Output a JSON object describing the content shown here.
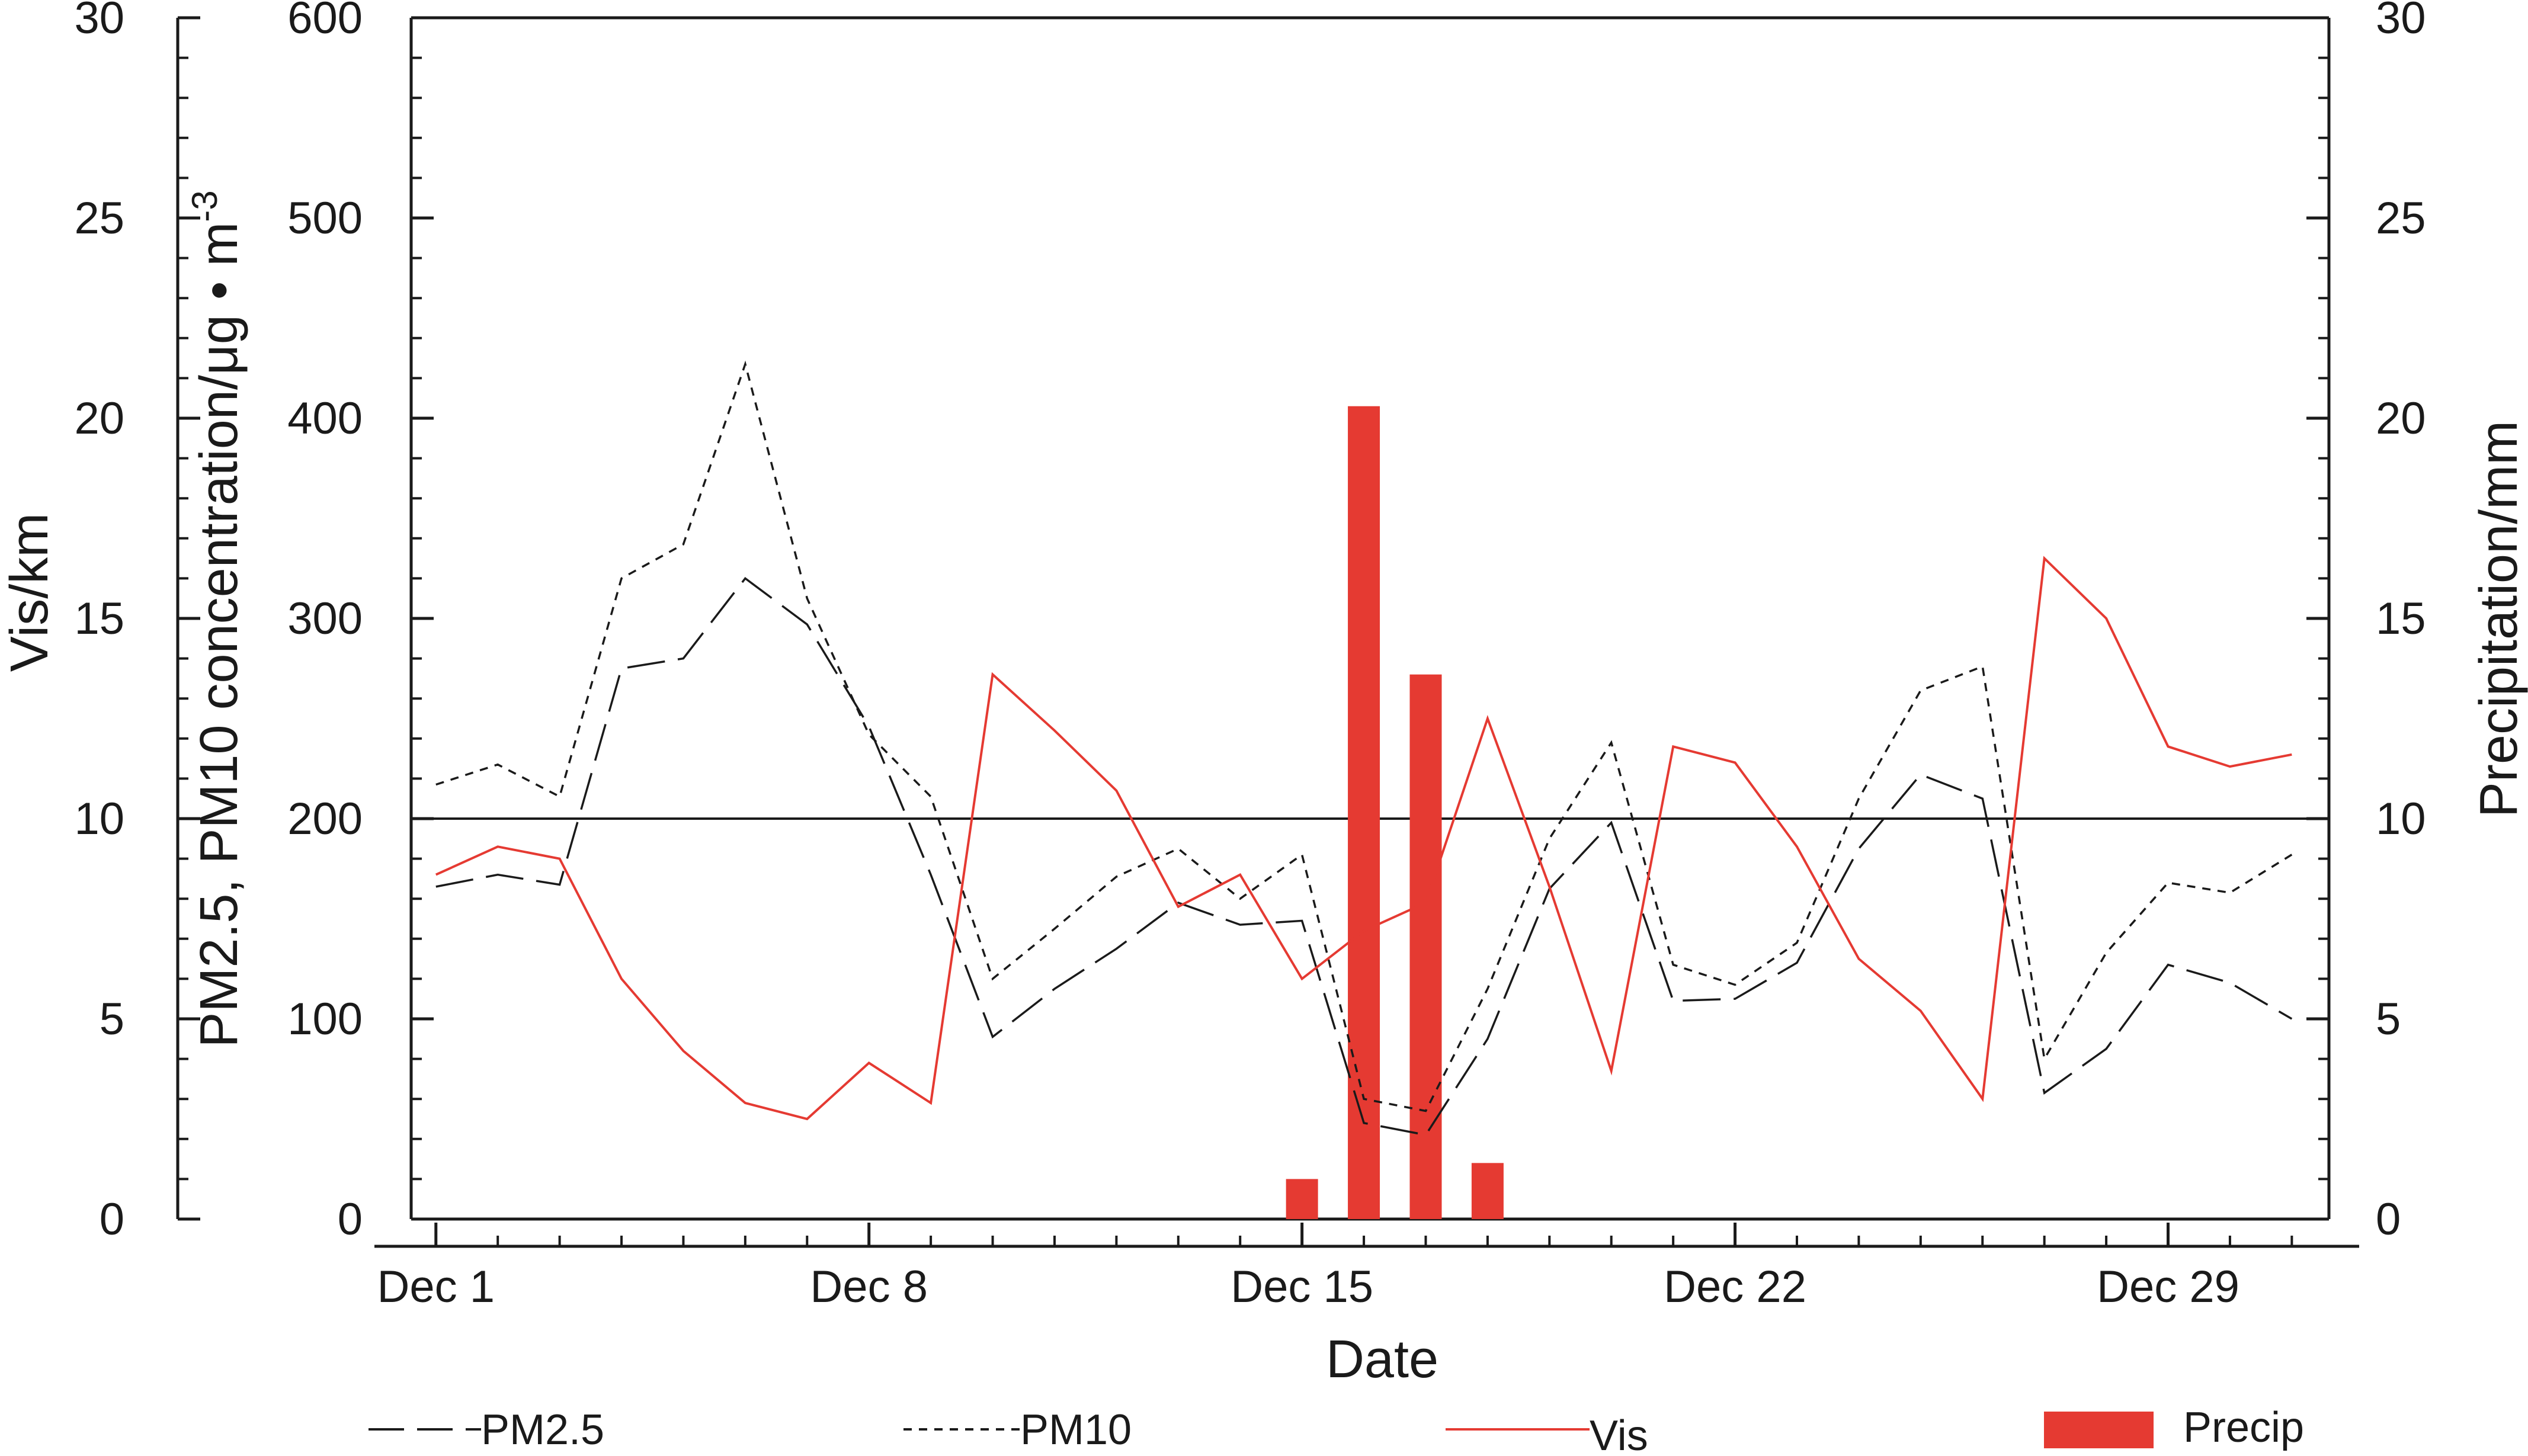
{
  "chart_data": {
    "type": "line",
    "xlabel": "Date",
    "x_tick_labels": [
      "Dec 1",
      "Dec 8",
      "Dec 15",
      "Dec 22",
      "Dec 29"
    ],
    "x_tick_days": [
      1,
      8,
      15,
      22,
      29
    ],
    "x_range": [
      0.6,
      31.6
    ],
    "x": [
      1,
      2,
      3,
      4,
      5,
      6,
      7,
      8,
      9,
      10,
      11,
      12,
      13,
      14,
      15,
      16,
      17,
      18,
      19,
      20,
      21,
      22,
      23,
      24,
      25,
      26,
      27,
      28,
      29,
      30,
      31
    ],
    "axes": {
      "vis": {
        "label": "Vis/km",
        "range": [
          0,
          30
        ],
        "ticks": [
          0,
          5,
          10,
          15,
          20,
          25,
          30
        ]
      },
      "pm": {
        "label_parts": [
          "PM2.5, PM10 concentration/μg • m",
          "-3"
        ],
        "range": [
          0,
          600
        ],
        "ticks": [
          0,
          100,
          200,
          300,
          400,
          500,
          600
        ]
      },
      "precip": {
        "label": "Precipitation/mm",
        "range": [
          0,
          30
        ],
        "ticks": [
          0,
          5,
          10,
          15,
          20,
          25,
          30
        ]
      }
    },
    "reference_line": {
      "axis": "pm",
      "value": 200
    },
    "series": [
      {
        "name": "PM2.5",
        "axis": "pm",
        "style": "long-dash",
        "color": "#1a1a1a",
        "values": [
          166,
          172,
          167,
          275,
          280,
          320,
          297,
          246,
          172,
          91,
          115,
          135,
          158,
          147,
          149,
          48,
          42,
          90,
          165,
          198,
          109,
          110,
          128,
          185,
          222,
          210,
          63,
          85,
          127,
          118,
          100
        ]
      },
      {
        "name": "PM10",
        "axis": "pm",
        "style": "short-dash",
        "color": "#1a1a1a",
        "values": [
          217,
          227,
          211,
          320,
          337,
          427,
          310,
          242,
          211,
          120,
          145,
          171,
          185,
          160,
          182,
          60,
          54,
          115,
          190,
          238,
          127,
          117,
          138,
          210,
          264,
          276,
          80,
          133,
          168,
          163,
          182
        ]
      },
      {
        "name": "Vis",
        "axis": "vis",
        "style": "solid",
        "color": "#e53a32",
        "values": [
          8.6,
          9.3,
          9.0,
          6.0,
          4.2,
          2.9,
          2.5,
          3.9,
          2.9,
          13.6,
          12.2,
          10.7,
          7.8,
          8.6,
          6.0,
          7.2,
          7.9,
          12.5,
          8.3,
          3.7,
          11.8,
          11.4,
          9.3,
          6.5,
          5.2,
          3.0,
          16.5,
          15.0,
          11.8,
          11.3,
          11.6
        ]
      },
      {
        "name": "Precip",
        "type": "bar",
        "axis": "precip",
        "color": "#e53a32",
        "x": [
          15,
          16,
          17,
          18
        ],
        "values": [
          1.0,
          20.3,
          13.6,
          1.4
        ]
      }
    ],
    "legend": {
      "placement": "bottom",
      "entries": [
        "PM2.5",
        "PM10",
        "Vis",
        "Precip"
      ]
    }
  }
}
